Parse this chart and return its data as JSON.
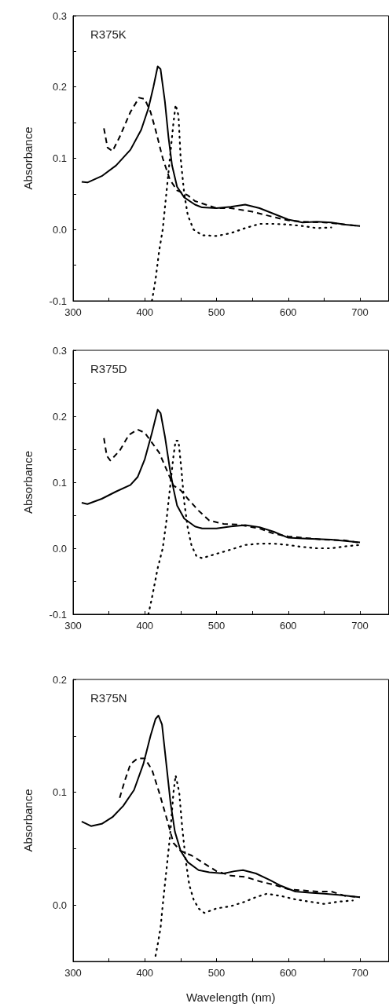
{
  "chart_data": [
    {
      "type": "line",
      "ylabel": "Absorbance",
      "annotations": [
        "R375K"
      ],
      "xlim": [
        300,
        740
      ],
      "ylim": [
        -0.1,
        0.3
      ],
      "xticks": [
        300,
        {
          "value": 350,
          "label": null
        },
        400,
        {
          "value": 450,
          "label": null
        },
        500,
        {
          "value": 550,
          "label": null
        },
        600,
        {
          "value": 650,
          "label": null
        },
        700
      ],
      "yticks": [
        {
          "value": -0.1,
          "label": "-0.1"
        },
        {
          "value": -0.05,
          "label": null
        },
        {
          "value": 0,
          "label": "0.0"
        },
        {
          "value": 0.05,
          "label": null
        },
        {
          "value": 0.1,
          "label": "0.1"
        },
        {
          "value": 0.15,
          "label": null
        },
        {
          "value": 0.2,
          "label": "0.2"
        },
        {
          "value": 0.25,
          "label": null
        },
        {
          "value": 0.3,
          "label": "0.3"
        }
      ],
      "marker": "none",
      "series": [
        {
          "color": "#000000",
          "line_style": "solid",
          "x": [
            312,
            320,
            340,
            360,
            380,
            395,
            405,
            412,
            418,
            422,
            428,
            433,
            438,
            445,
            455,
            470,
            480,
            500,
            520,
            540,
            560,
            580,
            600,
            620,
            640,
            660,
            680,
            700
          ],
          "values": [
            0.067,
            0.066,
            0.075,
            0.09,
            0.112,
            0.14,
            0.17,
            0.2,
            0.229,
            0.225,
            0.18,
            0.13,
            0.09,
            0.06,
            0.045,
            0.035,
            0.031,
            0.03,
            0.032,
            0.035,
            0.03,
            0.022,
            0.014,
            0.01,
            0.011,
            0.01,
            0.007,
            0.005
          ]
        },
        {
          "color": "#000000",
          "line_style": "dashed",
          "x": [
            343,
            348,
            355,
            365,
            380,
            392,
            400,
            408,
            415,
            425,
            435,
            445,
            460,
            470,
            485,
            500,
            520,
            550,
            570,
            590,
            600,
            620,
            650,
            680,
            700
          ],
          "values": [
            0.142,
            0.115,
            0.11,
            0.13,
            0.165,
            0.185,
            0.183,
            0.165,
            0.14,
            0.1,
            0.07,
            0.055,
            0.048,
            0.04,
            0.035,
            0.03,
            0.03,
            0.025,
            0.02,
            0.015,
            0.013,
            0.011,
            0.01,
            0.007,
            0.005
          ]
        },
        {
          "color": "#000000",
          "line_style": "dotted",
          "x": [
            410,
            415,
            420,
            425,
            430,
            435,
            440,
            443,
            447,
            450,
            455,
            460,
            468,
            480,
            500,
            520,
            540,
            560,
            580,
            600,
            620,
            640,
            660
          ],
          "values": [
            -0.1,
            -0.07,
            -0.03,
            0.0,
            0.05,
            0.1,
            0.15,
            0.175,
            0.16,
            0.1,
            0.05,
            0.02,
            0.0,
            -0.008,
            -0.009,
            -0.005,
            0.002,
            0.008,
            0.008,
            0.007,
            0.005,
            0.002,
            0.003
          ]
        }
      ]
    },
    {
      "type": "line",
      "ylabel": "Absorbance",
      "annotations": [
        "R375D"
      ],
      "xlim": [
        300,
        740
      ],
      "ylim": [
        -0.1,
        0.3
      ],
      "xticks": [
        300,
        {
          "value": 350,
          "label": null
        },
        400,
        {
          "value": 450,
          "label": null
        },
        500,
        {
          "value": 550,
          "label": null
        },
        600,
        {
          "value": 650,
          "label": null
        },
        700
      ],
      "yticks": [
        {
          "value": -0.1,
          "label": "-0.1"
        },
        {
          "value": -0.05,
          "label": null
        },
        {
          "value": 0,
          "label": "0.0"
        },
        {
          "value": 0.05,
          "label": null
        },
        {
          "value": 0.1,
          "label": "0.1"
        },
        {
          "value": 0.15,
          "label": null
        },
        {
          "value": 0.2,
          "label": "0.2"
        },
        {
          "value": 0.25,
          "label": null
        },
        {
          "value": 0.3,
          "label": "0.3"
        }
      ],
      "marker": "none",
      "series": [
        {
          "color": "#000000",
          "line_style": "solid",
          "x": [
            312,
            320,
            340,
            360,
            380,
            390,
            400,
            410,
            418,
            422,
            428,
            435,
            440,
            445,
            455,
            470,
            480,
            500,
            520,
            540,
            560,
            580,
            600,
            620,
            640,
            660,
            680,
            700
          ],
          "values": [
            0.069,
            0.067,
            0.075,
            0.086,
            0.096,
            0.108,
            0.135,
            0.175,
            0.21,
            0.205,
            0.17,
            0.12,
            0.09,
            0.065,
            0.045,
            0.033,
            0.03,
            0.03,
            0.033,
            0.035,
            0.032,
            0.025,
            0.016,
            0.015,
            0.014,
            0.013,
            0.011,
            0.009
          ]
        },
        {
          "color": "#000000",
          "line_style": "dashed",
          "x": [
            343,
            347,
            352,
            365,
            378,
            390,
            400,
            410,
            420,
            430,
            440,
            450,
            460,
            475,
            490,
            510,
            530,
            560,
            580,
            600,
            620,
            650,
            680,
            700
          ],
          "values": [
            0.167,
            0.14,
            0.133,
            0.148,
            0.172,
            0.18,
            0.175,
            0.16,
            0.145,
            0.12,
            0.095,
            0.088,
            0.075,
            0.057,
            0.042,
            0.037,
            0.036,
            0.03,
            0.022,
            0.018,
            0.016,
            0.013,
            0.012,
            0.008
          ]
        },
        {
          "color": "#000000",
          "line_style": "dotted",
          "x": [
            405,
            410,
            418,
            425,
            430,
            435,
            440,
            443,
            447,
            451,
            455,
            460,
            465,
            472,
            480,
            495,
            520,
            540,
            560,
            580,
            600,
            620,
            640,
            660,
            680,
            700
          ],
          "values": [
            -0.1,
            -0.075,
            -0.03,
            0.0,
            0.04,
            0.09,
            0.14,
            0.163,
            0.163,
            0.12,
            0.07,
            0.03,
            0.005,
            -0.012,
            -0.015,
            -0.01,
            -0.002,
            0.005,
            0.007,
            0.007,
            0.005,
            0.002,
            0.0,
            0.0,
            0.003,
            0.005
          ]
        }
      ]
    },
    {
      "type": "line",
      "xlabel": "Wavelength (nm)",
      "ylabel": "Absorbance",
      "annotations": [
        "R375N"
      ],
      "xlim": [
        300,
        740
      ],
      "ylim": [
        -0.05,
        0.2
      ],
      "xticks": [
        300,
        {
          "value": 350,
          "label": null
        },
        400,
        {
          "value": 450,
          "label": null
        },
        500,
        {
          "value": 550,
          "label": null
        },
        600,
        {
          "value": 650,
          "label": null
        },
        700
      ],
      "yticks": [
        {
          "value": 0,
          "label": "0.0"
        },
        {
          "value": 0.05,
          "label": null
        },
        {
          "value": 0.1,
          "label": "0.1"
        },
        {
          "value": 0.15,
          "label": null
        },
        {
          "value": 0.2,
          "label": "0.2"
        }
      ],
      "marker": "none",
      "series": [
        {
          "color": "#000000",
          "line_style": "solid",
          "x": [
            312,
            325,
            340,
            355,
            370,
            385,
            398,
            408,
            415,
            419,
            424,
            430,
            436,
            442,
            450,
            460,
            475,
            490,
            510,
            525,
            537,
            555,
            575,
            590,
            610,
            630,
            650,
            670,
            700
          ],
          "values": [
            0.074,
            0.07,
            0.072,
            0.078,
            0.088,
            0.102,
            0.125,
            0.15,
            0.165,
            0.168,
            0.16,
            0.125,
            0.09,
            0.065,
            0.048,
            0.038,
            0.031,
            0.029,
            0.028,
            0.03,
            0.031,
            0.028,
            0.022,
            0.017,
            0.012,
            0.011,
            0.01,
            0.009,
            0.007
          ]
        },
        {
          "color": "#000000",
          "line_style": "dashed",
          "x": [
            365,
            372,
            380,
            390,
            400,
            410,
            420,
            430,
            440,
            450,
            465,
            480,
            500,
            520,
            540,
            560,
            580,
            600,
            620,
            640,
            660,
            680,
            700
          ],
          "values": [
            0.095,
            0.11,
            0.125,
            0.13,
            0.13,
            0.12,
            0.1,
            0.078,
            0.055,
            0.048,
            0.044,
            0.038,
            0.03,
            0.026,
            0.025,
            0.021,
            0.018,
            0.014,
            0.013,
            0.012,
            0.012,
            0.008,
            0.007
          ]
        },
        {
          "color": "#000000",
          "line_style": "dotted",
          "x": [
            415,
            418,
            422,
            425,
            430,
            435,
            440,
            443,
            448,
            452,
            457,
            462,
            468,
            475,
            483,
            500,
            520,
            540,
            555,
            570,
            590,
            610,
            630,
            650,
            670,
            690
          ],
          "values": [
            -0.045,
            -0.035,
            -0.02,
            0.0,
            0.03,
            0.06,
            0.1,
            0.115,
            0.1,
            0.07,
            0.04,
            0.018,
            0.005,
            -0.003,
            -0.007,
            -0.003,
            -0.001,
            0.003,
            0.007,
            0.01,
            0.008,
            0.005,
            0.003,
            0.001,
            0.003,
            0.004
          ]
        }
      ]
    }
  ]
}
